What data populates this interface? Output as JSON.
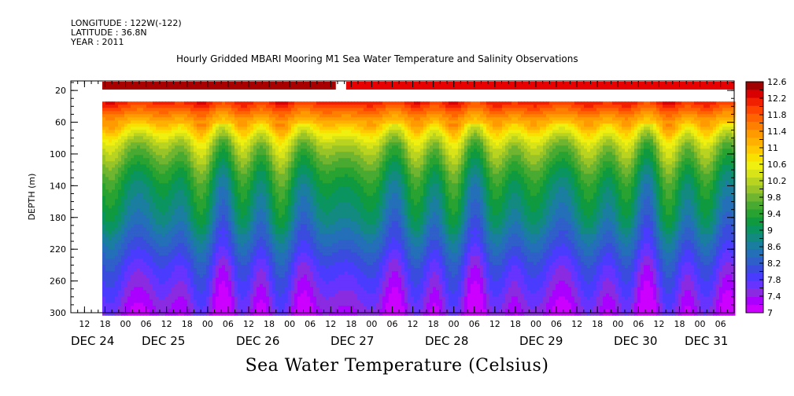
{
  "header": {
    "longitude": "LONGITUDE : 122W(-122)",
    "latitude": "LATITUDE : 36.8N",
    "year": "YEAR : 2011"
  },
  "chart_data": {
    "type": "heatmap",
    "title": "Hourly Gridded MBARI Mooring M1 Sea Water Temperature and Salinity Observations",
    "bottom_title": "Sea Water Temperature (Celsius)",
    "ylabel": "DEPTH (m)",
    "y_axis": {
      "ticks": [
        20,
        60,
        100,
        140,
        180,
        220,
        260,
        300
      ],
      "range": [
        8,
        300
      ],
      "inverted": true
    },
    "x_axis": {
      "range_hours": [
        "Dec 24 2011 08:00",
        "Jan 01 2012 00:00"
      ],
      "hour_ticks": [
        "12",
        "18",
        "00",
        "06",
        "12",
        "18",
        "00",
        "06",
        "12",
        "18",
        "00",
        "06",
        "12",
        "18",
        "00",
        "06",
        "12",
        "18",
        "00",
        "06",
        "12",
        "18",
        "00",
        "06",
        "12",
        "18",
        "00",
        "06",
        "12",
        "18",
        "00",
        "06"
      ],
      "date_labels": [
        "DEC 24",
        "DEC 25",
        "DEC 26",
        "DEC 27",
        "DEC 28",
        "DEC 29",
        "DEC 30",
        "DEC 31"
      ]
    },
    "colorbar": {
      "levels": [
        7,
        7.2,
        7.4,
        7.6,
        7.8,
        8.0,
        8.2,
        8.4,
        8.6,
        8.8,
        9.0,
        9.2,
        9.4,
        9.6,
        9.8,
        10.0,
        10.2,
        10.4,
        10.6,
        10.8,
        11.0,
        11.2,
        11.4,
        11.6,
        11.8,
        12.0,
        12.2,
        12.4,
        12.6
      ],
      "labels": [
        "12.6",
        "12.2",
        "11.8",
        "11.4",
        "11",
        "10.6",
        "10.2",
        "9.8",
        "9.4",
        "9",
        "8.6",
        "8.2",
        "7.8",
        "7.4",
        "7"
      ],
      "colors": [
        "#cc00ff",
        "#aa00ff",
        "#8a2be2",
        "#6633ff",
        "#4a3cff",
        "#3a4cdd",
        "#2f5fc8",
        "#2470b8",
        "#1a7ea0",
        "#128a80",
        "#0a9460",
        "#109a40",
        "#28a230",
        "#48aa30",
        "#70b530",
        "#98c428",
        "#b8d420",
        "#d8e418",
        "#f0f010",
        "#f8e000",
        "#ffc800",
        "#ffb000",
        "#ff9a00",
        "#ff8000",
        "#ff6400",
        "#ff4400",
        "#f02000",
        "#d80000",
        "#a00000"
      ],
      "range": [
        7,
        12.6
      ]
    },
    "profile_by_depth": {
      "depth_m": [
        30,
        40,
        50,
        60,
        70,
        80,
        90,
        100,
        110,
        120,
        140,
        160,
        180,
        200,
        220,
        240,
        260,
        280,
        300
      ],
      "typical_temperature_c": [
        12.4,
        12.0,
        11.6,
        11.2,
        10.8,
        10.4,
        10.1,
        9.9,
        9.7,
        9.5,
        9.2,
        9.0,
        8.8,
        8.5,
        8.2,
        7.9,
        7.7,
        7.5,
        7.3
      ]
    },
    "surface_band": {
      "depth_m": 10,
      "segments": [
        {
          "from_hour": 0,
          "to_hour": 68,
          "temperature_c": 12.6
        },
        {
          "from_hour": 71,
          "to_hour": 184,
          "temperature_c": 12.4
        }
      ]
    },
    "data_start_hour": 0,
    "data_gap_before_hours": 10,
    "grid": false
  }
}
